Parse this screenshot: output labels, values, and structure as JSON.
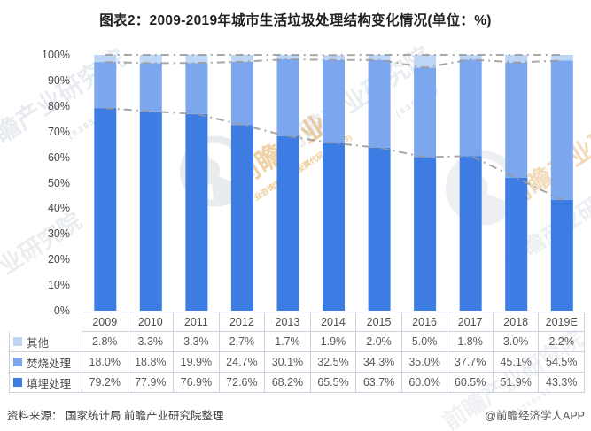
{
  "title": "图表2：2009-2019年城市生活垃圾处理结构变化情况(单位：%)",
  "chart_data": {
    "type": "bar",
    "subtype": "percent-stacked-column with dash-dot cumulative boundary lines",
    "title": "图表2：2009-2019年城市生活垃圾处理结构变化情况(单位：%)",
    "categories": [
      "2009",
      "2010",
      "2011",
      "2012",
      "2013",
      "2014",
      "2015",
      "2016",
      "2017",
      "2018",
      "2019E"
    ],
    "series": [
      {
        "name": "填埋处理",
        "color": "#3d7de3",
        "values": [
          79.2,
          77.9,
          76.9,
          72.6,
          68.2,
          65.5,
          63.7,
          60.0,
          60.5,
          51.9,
          43.3
        ]
      },
      {
        "name": "焚烧处理",
        "color": "#7ca6ee",
        "values": [
          18.0,
          18.8,
          19.9,
          24.7,
          30.1,
          32.5,
          34.3,
          35.0,
          37.7,
          45.1,
          54.5
        ]
      },
      {
        "name": "其他",
        "color": "#bed6f5",
        "values": [
          2.8,
          3.3,
          3.3,
          2.7,
          1.7,
          1.9,
          2.0,
          5.0,
          1.8,
          3.0,
          2.2
        ]
      }
    ],
    "overlay_lines": {
      "style": "dash-dot",
      "color": "#999999",
      "description": "gray dashed lines trace cumulative stack boundaries: 填埋处理, 填埋+焚烧, 合计100%"
    },
    "ylim": [
      0,
      100
    ],
    "ytick_step": 10,
    "yticks": [
      "0%",
      "10%",
      "20%",
      "30%",
      "40%",
      "50%",
      "60%",
      "70%",
      "80%",
      "90%",
      "100%"
    ],
    "grid": false,
    "legend_position": "data-table-left-column"
  },
  "table": {
    "corner": "",
    "header": [
      "2009",
      "2010",
      "2011",
      "2012",
      "2013",
      "2014",
      "2015",
      "2016",
      "2017",
      "2018",
      "2019E"
    ],
    "rows": [
      {
        "label": "其他",
        "swatch": "#bed6f5",
        "values": [
          "2.8%",
          "3.3%",
          "3.3%",
          "2.7%",
          "1.7%",
          "1.9%",
          "2.0%",
          "5.0%",
          "1.8%",
          "3.0%",
          "2.2%"
        ]
      },
      {
        "label": "焚烧处理",
        "swatch": "#7ca6ee",
        "values": [
          "18.0%",
          "18.8%",
          "19.9%",
          "24.7%",
          "30.1%",
          "32.5%",
          "34.3%",
          "35.0%",
          "37.7%",
          "45.1%",
          "54.5%"
        ]
      },
      {
        "label": "填埋处理",
        "swatch": "#3d7de3",
        "values": [
          "79.2%",
          "77.9%",
          "76.9%",
          "72.6%",
          "68.2%",
          "65.5%",
          "63.7%",
          "60.0%",
          "60.5%",
          "51.9%",
          "43.3%"
        ]
      }
    ]
  },
  "footer": {
    "source": "资料来源： 国家统计局 前瞻产业研究院整理",
    "credit": "@前瞻经济学人APP"
  },
  "watermarks": {
    "brand": "前瞻产业研究院",
    "brand_short": "前瞻产业",
    "sub": "中国产业咨询领导者(股票代码:839599)",
    "digits": "( 8 3 9 5 9 9 )"
  }
}
